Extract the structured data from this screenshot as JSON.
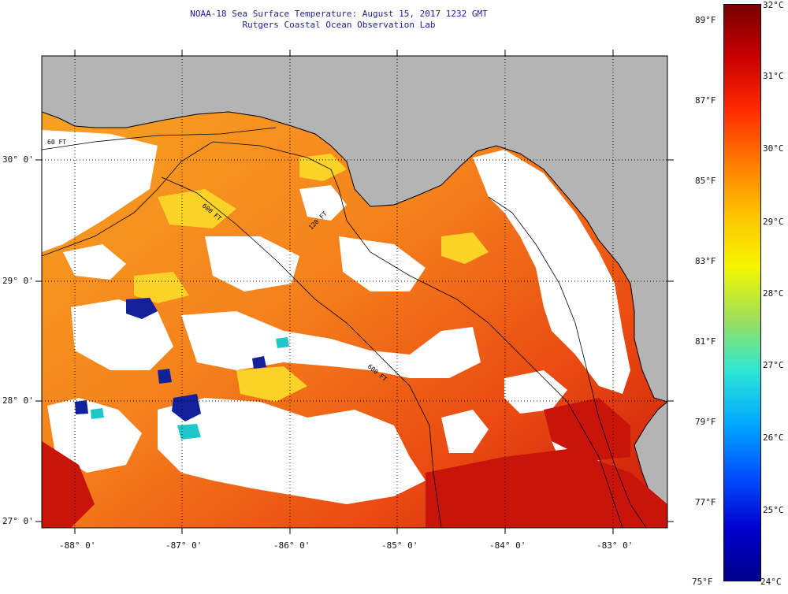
{
  "title": {
    "line1": "NOAA-18 Sea Surface Temperature:  August 15, 2017 1232 GMT",
    "line2": "Rutgers Coastal Ocean Observation Lab"
  },
  "map": {
    "lon_labels": [
      "-88° 0'",
      "-87° 0'",
      "-86° 0'",
      "-85° 0'",
      "-84° 0'",
      "-83° 0'"
    ],
    "lat_labels": [
      "30° 0'",
      "29° 0'",
      "28° 0'",
      "27° 0'"
    ],
    "isobaths": [
      "60 FT",
      "120 FT",
      "600 FT",
      "600 FT"
    ],
    "colors": {
      "land": "#b4b4b4",
      "cloud": "#ffffff",
      "warm": "#f05a14",
      "hot": "#d21e0a",
      "orange": "#f8961e",
      "yellow": "#fad228",
      "cold": "#12209a"
    }
  },
  "colorbar": {
    "fahrenheit_labels": [
      "89°F",
      "87°F",
      "85°F",
      "83°F",
      "81°F",
      "79°F",
      "77°F",
      "75°F"
    ],
    "celsius_labels": [
      "32°C",
      "31°C",
      "30°C",
      "29°C",
      "28°C",
      "27°C",
      "26°C",
      "25°C",
      "24°C"
    ],
    "colors": [
      "#7a0000",
      "#c80000",
      "#ff2a00",
      "#ff7a00",
      "#ffc200",
      "#f6f600",
      "#9ee05a",
      "#2ee6d6",
      "#00a8ff",
      "#0050ff",
      "#0000d0",
      "#00008a"
    ]
  }
}
